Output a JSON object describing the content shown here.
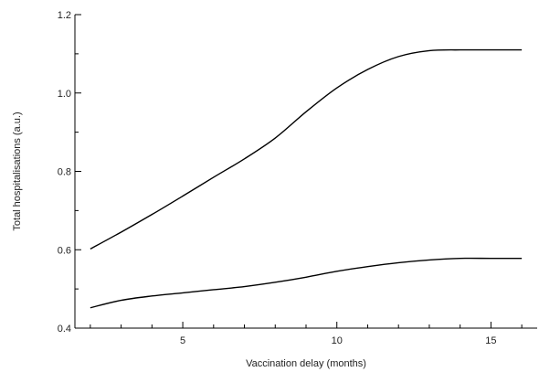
{
  "chart_data": {
    "type": "line",
    "xlabel": "Vaccination delay (months)",
    "ylabel": "Total hospitalisations (a.u.)",
    "xlim": [
      1.5,
      16.5
    ],
    "ylim": [
      0.4,
      1.2
    ],
    "xticks": [
      5,
      10,
      15
    ],
    "yticks": [
      0.4,
      0.6,
      0.8,
      1.0,
      1.2
    ],
    "xtick_labels": [
      "5",
      "10",
      "15"
    ],
    "ytick_labels": [
      "0.4",
      "0.6",
      "0.8",
      "1.0",
      "1.2"
    ],
    "grid": false,
    "series": [
      {
        "x": [
          2,
          3,
          4,
          5,
          6,
          7,
          8,
          9,
          10,
          11,
          12,
          13,
          14,
          15,
          16
        ],
        "y": [
          0.602,
          0.645,
          0.69,
          0.737,
          0.785,
          0.832,
          0.885,
          0.952,
          1.013,
          1.06,
          1.093,
          1.108,
          1.11,
          1.11,
          1.11
        ]
      },
      {
        "x": [
          2,
          3,
          4,
          5,
          6,
          7,
          8,
          9,
          10,
          11,
          12,
          13,
          14,
          15,
          16
        ],
        "y": [
          0.452,
          0.471,
          0.482,
          0.49,
          0.498,
          0.506,
          0.517,
          0.53,
          0.545,
          0.557,
          0.567,
          0.574,
          0.578,
          0.578,
          0.578
        ]
      }
    ]
  }
}
